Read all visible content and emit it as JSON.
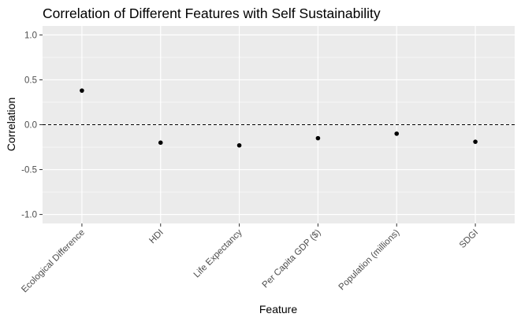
{
  "chart_data": {
    "type": "scatter",
    "title": "Correlation of Different Features with Self Sustainability",
    "xlabel": "Feature",
    "ylabel": "Correlation",
    "categories": [
      "Ecological Difference",
      "HDI",
      "Life Expectancy",
      "Per Capita GDP ($)",
      "Population (millions)",
      "SDGI"
    ],
    "values": [
      0.38,
      -0.2,
      -0.23,
      -0.15,
      -0.1,
      -0.19
    ],
    "ylim": [
      -1.1,
      1.1
    ],
    "yticks": [
      "1.0",
      "0.5",
      "0.0",
      "-0.5",
      "-1.0"
    ],
    "reference_line": 0,
    "grid": true,
    "legend": "none",
    "colors": {
      "panel": "#ebebeb",
      "grid": "#ffffff",
      "point": "#000000",
      "tick_text": "#4d4d4d"
    }
  }
}
